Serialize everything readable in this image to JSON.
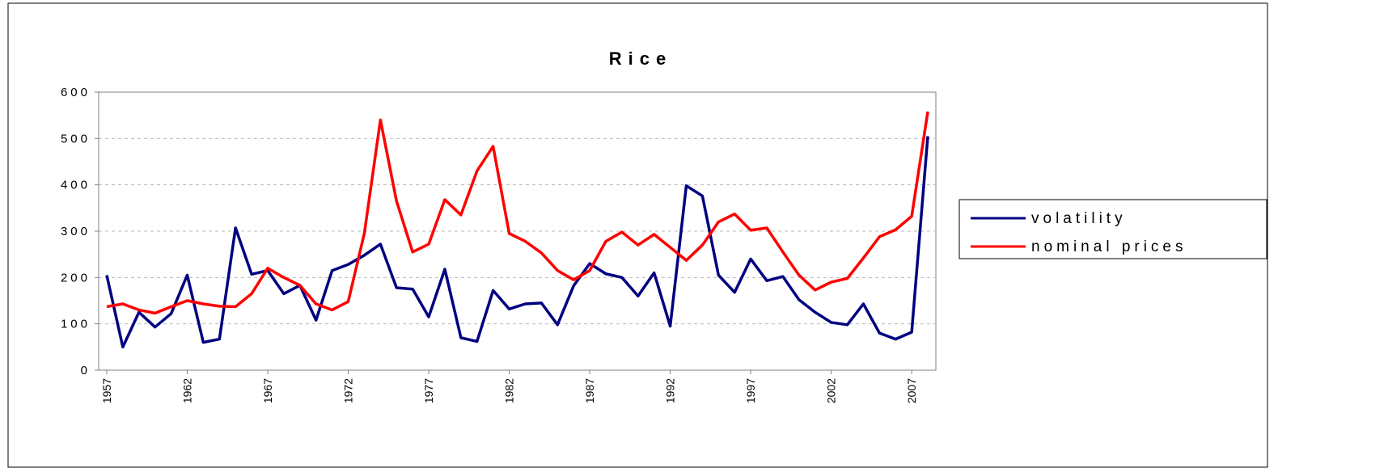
{
  "chart_data": {
    "type": "line",
    "title": "Rice",
    "x": [
      1957,
      1958,
      1959,
      1960,
      1961,
      1962,
      1963,
      1964,
      1965,
      1966,
      1967,
      1968,
      1969,
      1970,
      1971,
      1972,
      1973,
      1974,
      1975,
      1976,
      1977,
      1978,
      1979,
      1980,
      1981,
      1982,
      1983,
      1984,
      1985,
      1986,
      1987,
      1988,
      1989,
      1990,
      1991,
      1992,
      1993,
      1994,
      1995,
      1996,
      1997,
      1998,
      1999,
      2000,
      2001,
      2002,
      2003,
      2004,
      2005,
      2006,
      2007,
      2008
    ],
    "xlim": [
      1956.5,
      2008.5
    ],
    "xticks": [
      1957,
      1962,
      1967,
      1972,
      1977,
      1982,
      1987,
      1992,
      1997,
      2002,
      2007
    ],
    "ylim": [
      0,
      600
    ],
    "yticks": [
      0,
      100,
      200,
      300,
      400,
      500,
      600
    ],
    "grid": true,
    "legend": "right",
    "series": [
      {
        "name": "volatility",
        "color": "#000080",
        "values": [
          205,
          50,
          125,
          93,
          122,
          205,
          60,
          67,
          307,
          207,
          215,
          165,
          183,
          108,
          215,
          228,
          248,
          272,
          178,
          175,
          115,
          218,
          70,
          62,
          172,
          132,
          143,
          145,
          98,
          182,
          230,
          208,
          200,
          160,
          210,
          95,
          398,
          376,
          205,
          168,
          240,
          193,
          202,
          152,
          125,
          103,
          98,
          143,
          80,
          67,
          82,
          505
        ]
      },
      {
        "name": "nominal prices",
        "color": "#ff0000",
        "values": [
          137,
          143,
          130,
          123,
          137,
          150,
          143,
          138,
          137,
          165,
          220,
          200,
          183,
          143,
          130,
          148,
          295,
          540,
          365,
          255,
          272,
          368,
          335,
          430,
          483,
          295,
          278,
          253,
          215,
          195,
          215,
          278,
          298,
          270,
          293,
          265,
          237,
          270,
          320,
          337,
          302,
          307,
          255,
          205,
          173,
          190,
          198,
          242,
          288,
          303,
          332,
          558
        ]
      }
    ]
  }
}
